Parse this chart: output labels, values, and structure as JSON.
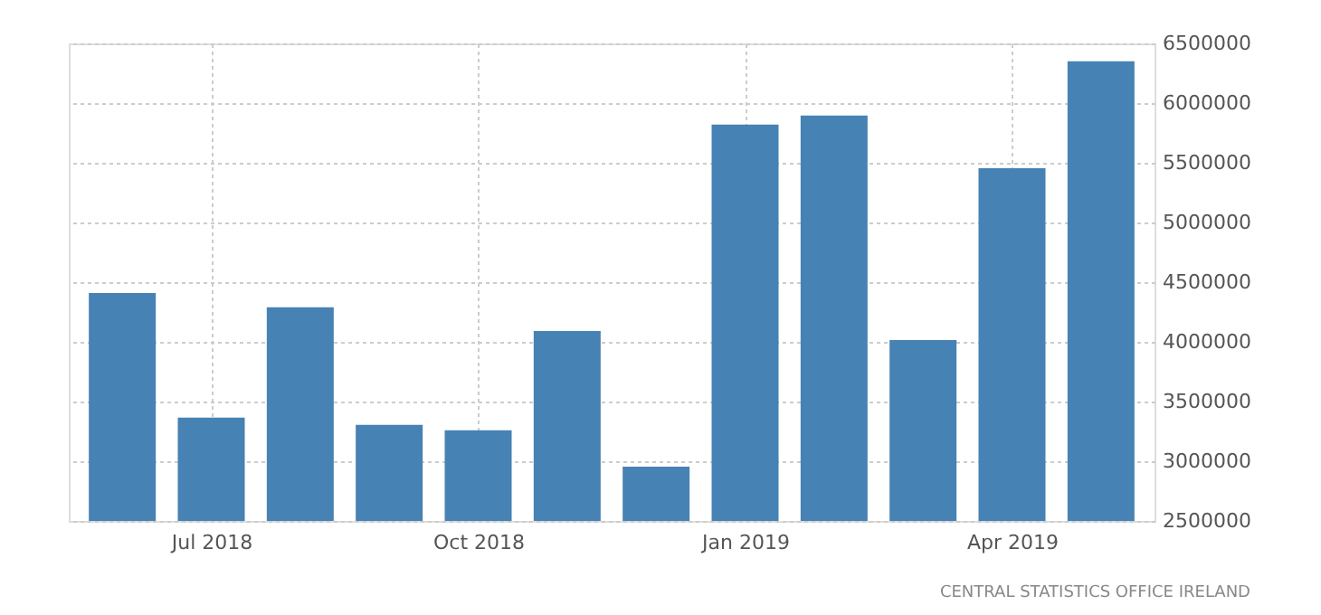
{
  "chart_data": {
    "type": "bar",
    "categories": [
      null,
      "Jul 2018",
      null,
      null,
      "Oct 2018",
      null,
      null,
      "Jan 2019",
      null,
      null,
      "Apr 2019",
      null
    ],
    "values": [
      4410000,
      3365000,
      4290000,
      3305000,
      3260000,
      4090000,
      2955000,
      5820000,
      5895000,
      4015000,
      5455000,
      6350000
    ],
    "color": "#4682b4",
    "ylim": [
      2500000,
      6500000
    ],
    "yticks": [
      2500000,
      3000000,
      3500000,
      4000000,
      4500000,
      5000000,
      5500000,
      6000000,
      6500000
    ],
    "grid": true,
    "annotations": [
      "CENTRAL STATISTICS OFFICE IRELAND"
    ]
  }
}
